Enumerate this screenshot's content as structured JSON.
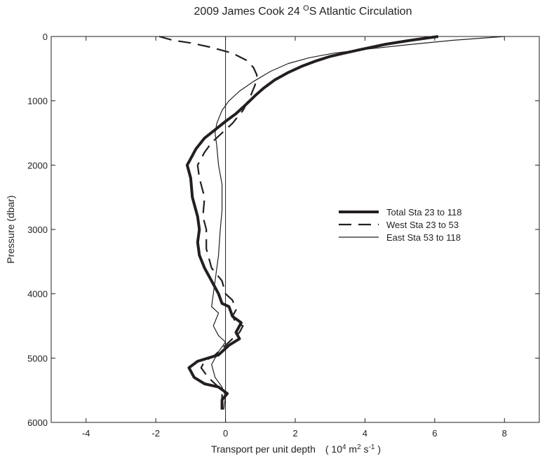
{
  "chart_data": {
    "type": "line",
    "title": "2009  James Cook  24 °S  Atlantic Circulation",
    "title_parts": {
      "main": "2009  James Cook  24 ",
      "sup": "O",
      "tail": "S  Atlantic Circulation"
    },
    "xlabel": "Transport per unit depth",
    "xlabel_units": {
      "open": "( 10",
      "e4": "4",
      "m": " m",
      "e2": "2",
      "s": " s",
      "em1": "-1",
      "close": " )"
    },
    "ylabel": "Pressure  (dbar)",
    "xlim": [
      -5,
      9
    ],
    "ylim": [
      6000,
      0
    ],
    "x_ticks": [
      -4,
      -2,
      0,
      2,
      4,
      6,
      8
    ],
    "y_ticks": [
      0,
      1000,
      2000,
      3000,
      4000,
      5000,
      6000
    ],
    "grid": false,
    "zero_line": true,
    "legend": {
      "placement": "right-middle"
    },
    "colors": {
      "line": "#231f20"
    },
    "series": [
      {
        "name": "Total  Sta 23 to 118",
        "style": "thick",
        "points": [
          [
            6.1,
            0
          ],
          [
            5.3,
            60
          ],
          [
            4.6,
            120
          ],
          [
            3.9,
            200
          ],
          [
            3.4,
            260
          ],
          [
            3.0,
            310
          ],
          [
            2.6,
            380
          ],
          [
            2.2,
            460
          ],
          [
            1.8,
            560
          ],
          [
            1.4,
            680
          ],
          [
            1.1,
            800
          ],
          [
            0.85,
            920
          ],
          [
            0.6,
            1050
          ],
          [
            0.3,
            1200
          ],
          [
            0.0,
            1320
          ],
          [
            -0.3,
            1450
          ],
          [
            -0.6,
            1580
          ],
          [
            -0.85,
            1750
          ],
          [
            -1.0,
            1900
          ],
          [
            -1.1,
            2000
          ],
          [
            -1.0,
            2200
          ],
          [
            -0.95,
            2500
          ],
          [
            -0.8,
            2800
          ],
          [
            -0.75,
            3000
          ],
          [
            -0.8,
            3200
          ],
          [
            -0.75,
            3400
          ],
          [
            -0.6,
            3600
          ],
          [
            -0.4,
            3800
          ],
          [
            -0.2,
            4000
          ],
          [
            -0.1,
            4150
          ],
          [
            0.1,
            4200
          ],
          [
            0.2,
            4350
          ],
          [
            0.45,
            4450
          ],
          [
            0.3,
            4600
          ],
          [
            0.4,
            4700
          ],
          [
            0.1,
            4800
          ],
          [
            -0.2,
            4950
          ],
          [
            -0.5,
            5000
          ],
          [
            -0.8,
            5050
          ],
          [
            -1.05,
            5150
          ],
          [
            -0.9,
            5300
          ],
          [
            -0.6,
            5400
          ],
          [
            -0.2,
            5450
          ],
          [
            0.05,
            5550
          ],
          [
            -0.1,
            5650
          ],
          [
            -0.1,
            5800
          ]
        ]
      },
      {
        "name": "West  Sta 23 to 53",
        "style": "dashed",
        "points": [
          [
            -1.9,
            0
          ],
          [
            -1.5,
            60
          ],
          [
            -1.0,
            100
          ],
          [
            -0.4,
            170
          ],
          [
            0.2,
            260
          ],
          [
            0.6,
            370
          ],
          [
            0.8,
            480
          ],
          [
            0.9,
            600
          ],
          [
            0.85,
            750
          ],
          [
            0.7,
            950
          ],
          [
            0.5,
            1150
          ],
          [
            0.2,
            1350
          ],
          [
            -0.1,
            1500
          ],
          [
            -0.4,
            1650
          ],
          [
            -0.6,
            1800
          ],
          [
            -0.8,
            2000
          ],
          [
            -0.75,
            2200
          ],
          [
            -0.6,
            2500
          ],
          [
            -0.65,
            2800
          ],
          [
            -0.55,
            3000
          ],
          [
            -0.55,
            3300
          ],
          [
            -0.4,
            3600
          ],
          [
            -0.1,
            3800
          ],
          [
            0.0,
            4000
          ],
          [
            0.2,
            4100
          ],
          [
            0.3,
            4250
          ],
          [
            0.2,
            4350
          ],
          [
            0.3,
            4450
          ],
          [
            0.5,
            4500
          ],
          [
            0.4,
            4600
          ],
          [
            0.2,
            4700
          ],
          [
            0.0,
            4800
          ],
          [
            -0.3,
            4950
          ],
          [
            -0.6,
            5050
          ],
          [
            -0.7,
            5150
          ],
          [
            -0.5,
            5300
          ],
          [
            -0.1,
            5500
          ],
          [
            -0.1,
            5800
          ]
        ]
      },
      {
        "name": "East  Sta 53 to 118",
        "style": "thin",
        "points": [
          [
            8.0,
            0
          ],
          [
            6.5,
            60
          ],
          [
            5.2,
            130
          ],
          [
            4.0,
            200
          ],
          [
            3.1,
            260
          ],
          [
            2.4,
            330
          ],
          [
            1.8,
            420
          ],
          [
            1.3,
            540
          ],
          [
            0.8,
            700
          ],
          [
            0.4,
            850
          ],
          [
            0.1,
            1000
          ],
          [
            -0.1,
            1150
          ],
          [
            -0.25,
            1350
          ],
          [
            -0.3,
            1500
          ],
          [
            -0.25,
            1700
          ],
          [
            -0.2,
            2000
          ],
          [
            -0.1,
            2300
          ],
          [
            -0.1,
            2700
          ],
          [
            -0.15,
            3000
          ],
          [
            -0.2,
            3400
          ],
          [
            -0.3,
            3800
          ],
          [
            -0.35,
            4000
          ],
          [
            -0.4,
            4200
          ],
          [
            -0.2,
            4300
          ],
          [
            -0.35,
            4500
          ],
          [
            -0.2,
            4650
          ],
          [
            0.0,
            4750
          ],
          [
            -0.2,
            4900
          ],
          [
            -0.4,
            5100
          ],
          [
            -0.3,
            5300
          ],
          [
            -0.1,
            5450
          ],
          [
            0.0,
            5600
          ],
          [
            -0.05,
            5800
          ]
        ]
      }
    ]
  }
}
